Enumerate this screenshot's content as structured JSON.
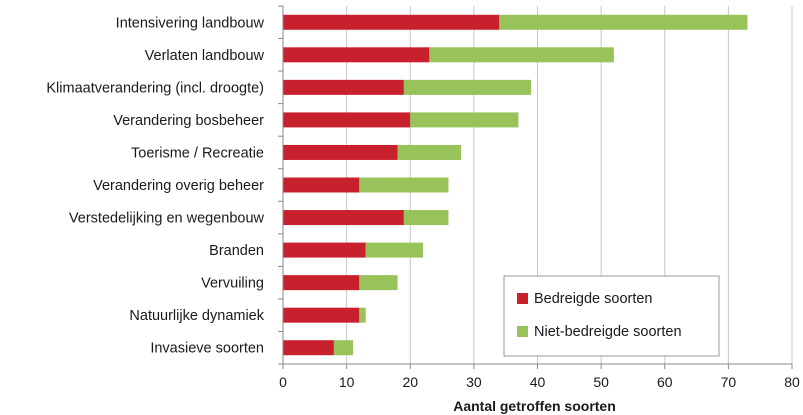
{
  "chart_data": {
    "type": "bar",
    "orientation": "horizontal",
    "stacked": true,
    "categories": [
      "Intensivering landbouw",
      "Verlaten landbouw",
      "Klimaatverandering (incl. droogte)",
      "Verandering bosbeheer",
      "Toerisme / Recreatie",
      "Verandering overig beheer",
      "Verstedelijking en wegenbouw",
      "Branden",
      "Vervuiling",
      "Natuurlijke dynamiek",
      "Invasieve soorten"
    ],
    "series": [
      {
        "name": "Bedreigde soorten",
        "color": "#c8202c",
        "values": [
          34,
          23,
          19,
          20,
          18,
          12,
          19,
          13,
          12,
          12,
          8
        ]
      },
      {
        "name": "Niet-bedreigde soorten",
        "color": "#97c35a",
        "values": [
          39,
          29,
          20,
          17,
          10,
          14,
          7,
          9,
          6,
          1,
          3
        ]
      }
    ],
    "xlabel": "Aantal getroffen soorten",
    "xlim": [
      0,
      80
    ],
    "xticks": [
      "0",
      "10",
      "20",
      "30",
      "40",
      "50",
      "60",
      "70",
      "80"
    ],
    "grid": true,
    "legend_position": "bottom-right"
  }
}
